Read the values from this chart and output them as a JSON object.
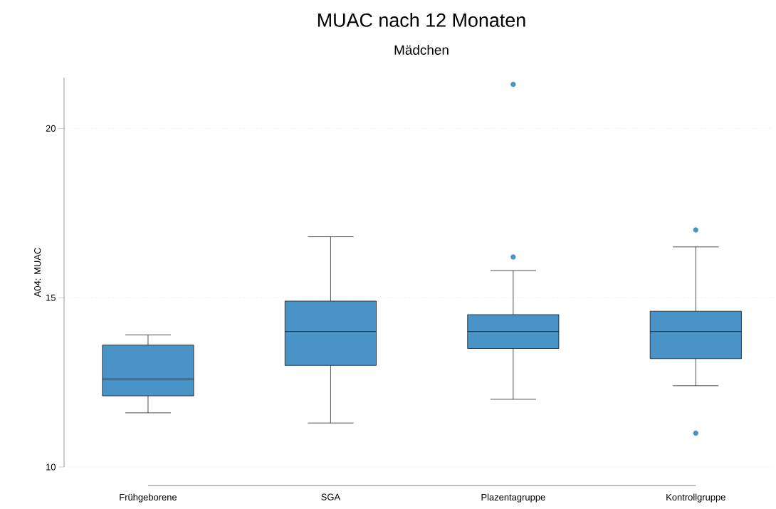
{
  "chart_data": {
    "type": "box",
    "title": "MUAC nach 12 Monaten",
    "subtitle": "Mädchen",
    "ylabel": "A04: MUAC",
    "categories": [
      "Frühgeborene",
      "SGA",
      "Plazentagruppe",
      "Kontrollgruppe"
    ],
    "boxes": [
      {
        "low": 11.6,
        "q1": 12.1,
        "median": 12.6,
        "q3": 13.6,
        "high": 13.9
      },
      {
        "low": 11.3,
        "q1": 13.0,
        "median": 14.0,
        "q3": 14.9,
        "high": 16.8
      },
      {
        "low": 12.0,
        "q1": 13.5,
        "median": 14.0,
        "q3": 14.5,
        "high": 15.8,
        "outliers": [
          16.2,
          21.3
        ]
      },
      {
        "low": 12.4,
        "q1": 13.2,
        "median": 14.0,
        "q3": 14.6,
        "high": 16.5,
        "outliers": [
          17.0,
          11.0
        ]
      }
    ],
    "color": "#4a93c6",
    "marker": "circle",
    "grid": "y",
    "ylim": [
      10,
      21.5
    ],
    "yticks": [
      10,
      15,
      20
    ]
  }
}
